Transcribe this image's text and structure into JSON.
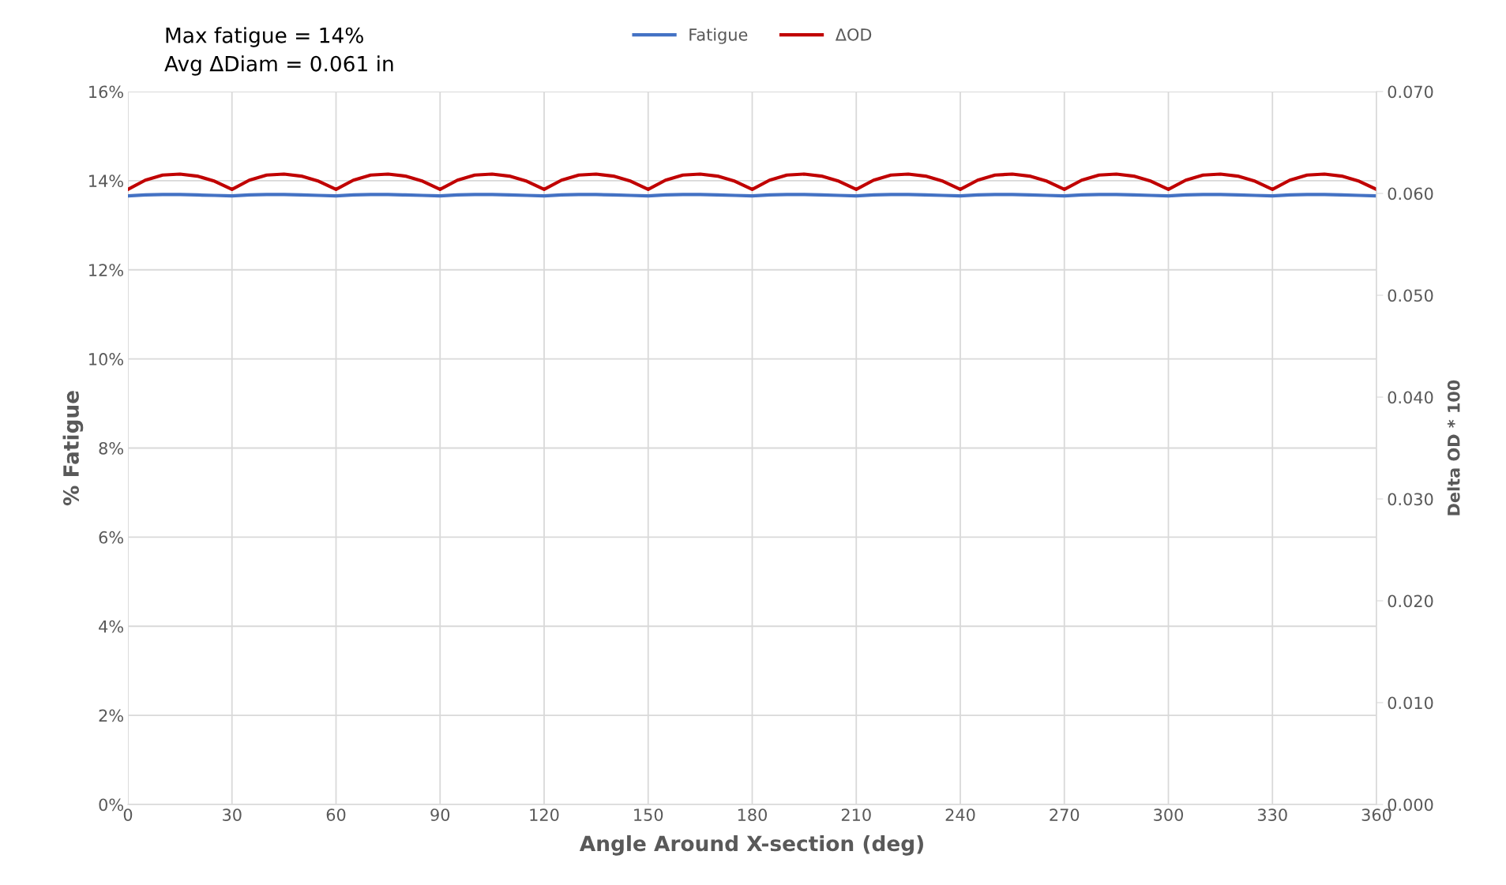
{
  "chart_data": {
    "type": "line",
    "xlabel": "Angle Around X-section (deg)",
    "ylabel": "% Fatigue",
    "y2label": "Delta OD * 100",
    "annotations": [
      "Max fatigue = 14%",
      "Avg ΔDiam = 0.061 in"
    ],
    "x": [
      0,
      5,
      10,
      15,
      20,
      25,
      30,
      35,
      40,
      45,
      50,
      55,
      60,
      65,
      70,
      75,
      80,
      85,
      90,
      95,
      100,
      105,
      110,
      115,
      120,
      125,
      130,
      135,
      140,
      145,
      150,
      155,
      160,
      165,
      170,
      175,
      180,
      185,
      190,
      195,
      200,
      205,
      210,
      215,
      220,
      225,
      230,
      235,
      240,
      245,
      250,
      255,
      260,
      265,
      270,
      275,
      280,
      285,
      290,
      295,
      300,
      305,
      310,
      315,
      320,
      325,
      330,
      335,
      340,
      345,
      350,
      355,
      360
    ],
    "series": [
      {
        "name": "Fatigue",
        "color": "#4472c4",
        "values": [
          13.66,
          13.68,
          13.69,
          13.69,
          13.68,
          13.67,
          13.66,
          13.68,
          13.69,
          13.69,
          13.68,
          13.67,
          13.66,
          13.68,
          13.69,
          13.69,
          13.68,
          13.67,
          13.66,
          13.68,
          13.69,
          13.69,
          13.68,
          13.67,
          13.66,
          13.68,
          13.69,
          13.69,
          13.68,
          13.67,
          13.66,
          13.68,
          13.69,
          13.69,
          13.68,
          13.67,
          13.66,
          13.68,
          13.69,
          13.69,
          13.68,
          13.67,
          13.66,
          13.68,
          13.69,
          13.69,
          13.68,
          13.67,
          13.66,
          13.68,
          13.69,
          13.69,
          13.68,
          13.67,
          13.66,
          13.68,
          13.69,
          13.69,
          13.68,
          13.67,
          13.66,
          13.68,
          13.69,
          13.69,
          13.68,
          13.67,
          13.66,
          13.68,
          13.69,
          13.69,
          13.68,
          13.67,
          13.66
        ]
      },
      {
        "name": "ΔOD",
        "color": "#c00000",
        "axis": "y2",
        "values": [
          0.0604,
          0.0613,
          0.0618,
          0.0619,
          0.0617,
          0.0612,
          0.0604,
          0.0613,
          0.0618,
          0.0619,
          0.0617,
          0.0612,
          0.0604,
          0.0613,
          0.0618,
          0.0619,
          0.0617,
          0.0612,
          0.0604,
          0.0613,
          0.0618,
          0.0619,
          0.0617,
          0.0612,
          0.0604,
          0.0613,
          0.0618,
          0.0619,
          0.0617,
          0.0612,
          0.0604,
          0.0613,
          0.0618,
          0.0619,
          0.0617,
          0.0612,
          0.0604,
          0.0613,
          0.0618,
          0.0619,
          0.0617,
          0.0612,
          0.0604,
          0.0613,
          0.0618,
          0.0619,
          0.0617,
          0.0612,
          0.0604,
          0.0613,
          0.0618,
          0.0619,
          0.0617,
          0.0612,
          0.0604,
          0.0613,
          0.0618,
          0.0619,
          0.0617,
          0.0612,
          0.0604,
          0.0613,
          0.0618,
          0.0619,
          0.0617,
          0.0612,
          0.0604,
          0.0613,
          0.0618,
          0.0619,
          0.0617,
          0.0612,
          0.0604
        ]
      }
    ],
    "xlim": [
      0,
      360
    ],
    "xticks": [
      0,
      30,
      60,
      90,
      120,
      150,
      180,
      210,
      240,
      270,
      300,
      330,
      360
    ],
    "ylim": [
      0,
      16
    ],
    "yticks": [
      {
        "value": 0,
        "label": "0%"
      },
      {
        "value": 2,
        "label": "2%"
      },
      {
        "value": 4,
        "label": "4%"
      },
      {
        "value": 6,
        "label": "6%"
      },
      {
        "value": 8,
        "label": "8%"
      },
      {
        "value": 10,
        "label": "10%"
      },
      {
        "value": 12,
        "label": "12%"
      },
      {
        "value": 14,
        "label": "14%"
      },
      {
        "value": 16,
        "label": "16%"
      }
    ],
    "y2lim": [
      0,
      0.07
    ],
    "y2ticks": [
      {
        "value": 0,
        "label": "0.000"
      },
      {
        "value": 0.01,
        "label": "0.010"
      },
      {
        "value": 0.02,
        "label": "0.020"
      },
      {
        "value": 0.03,
        "label": "0.030"
      },
      {
        "value": 0.04,
        "label": "0.040"
      },
      {
        "value": 0.05,
        "label": "0.050"
      },
      {
        "value": 0.06,
        "label": "0.060"
      },
      {
        "value": 0.07,
        "label": "0.070"
      }
    ],
    "grid": true,
    "legend": "top",
    "marker": "none",
    "line_style": "solid"
  }
}
